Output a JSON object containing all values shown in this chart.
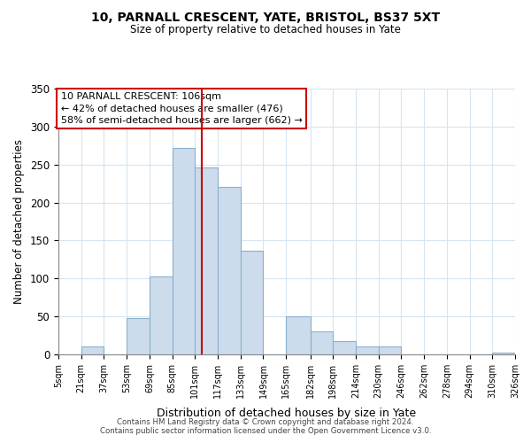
{
  "title1": "10, PARNALL CRESCENT, YATE, BRISTOL, BS37 5XT",
  "title2": "Size of property relative to detached houses in Yate",
  "xlabel": "Distribution of detached houses by size in Yate",
  "ylabel": "Number of detached properties",
  "bar_color": "#ccdcec",
  "bar_edge_color": "#8ab0cc",
  "bin_edges": [
    5,
    21,
    37,
    53,
    69,
    85,
    101,
    117,
    133,
    149,
    165,
    182,
    198,
    214,
    230,
    246,
    262,
    278,
    294,
    310,
    326
  ],
  "bin_labels": [
    "5sqm",
    "21sqm",
    "37sqm",
    "53sqm",
    "69sqm",
    "85sqm",
    "101sqm",
    "117sqm",
    "133sqm",
    "149sqm",
    "165sqm",
    "182sqm",
    "198sqm",
    "214sqm",
    "230sqm",
    "246sqm",
    "262sqm",
    "278sqm",
    "294sqm",
    "310sqm",
    "326sqm"
  ],
  "counts": [
    0,
    10,
    0,
    48,
    103,
    272,
    246,
    220,
    136,
    0,
    50,
    30,
    17,
    10,
    10,
    0,
    0,
    0,
    0,
    2
  ],
  "property_line_x": 106,
  "property_line_color": "#cc0000",
  "annotation_title": "10 PARNALL CRESCENT: 106sqm",
  "annotation_line1": "← 42% of detached houses are smaller (476)",
  "annotation_line2": "58% of semi-detached houses are larger (662) →",
  "ylim": [
    0,
    350
  ],
  "yticks": [
    0,
    50,
    100,
    150,
    200,
    250,
    300,
    350
  ],
  "footnote1": "Contains HM Land Registry data © Crown copyright and database right 2024.",
  "footnote2": "Contains public sector information licensed under the Open Government Licence v3.0.",
  "grid_color": "#d5e5f0"
}
